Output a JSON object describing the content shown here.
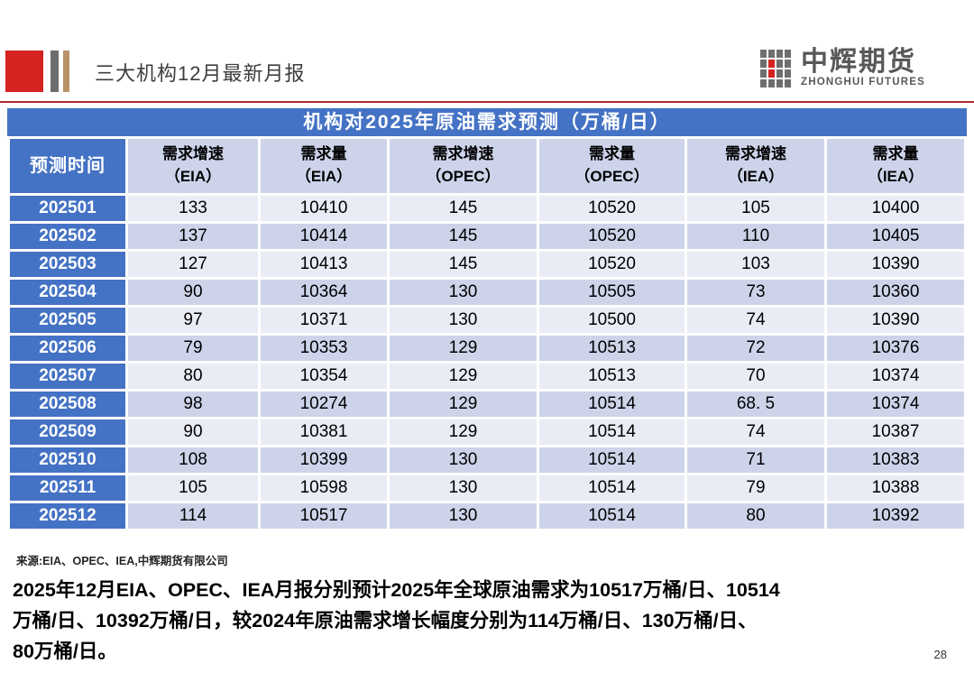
{
  "slide": {
    "title": "三大机构12月最新月报",
    "page_number": "28"
  },
  "logo": {
    "name_zh": "中辉期货",
    "name_en": "ZHONGHUI FUTURES"
  },
  "table": {
    "title": "机构对2025年原油需求预测（万桶/日）",
    "columns": [
      {
        "line1": "预测时间",
        "line2": ""
      },
      {
        "line1": "需求增速",
        "line2": "（EIA）"
      },
      {
        "line1": "需求量",
        "line2": "（EIA）"
      },
      {
        "line1": "需求增速",
        "line2": "（OPEC）"
      },
      {
        "line1": "需求量",
        "line2": "（OPEC）"
      },
      {
        "line1": "需求增速",
        "line2": "（IEA）"
      },
      {
        "line1": "需求量",
        "line2": "（IEA）"
      }
    ],
    "rows": [
      [
        "202501",
        "133",
        "10410",
        "145",
        "10520",
        "105",
        "10400"
      ],
      [
        "202502",
        "137",
        "10414",
        "145",
        "10520",
        "110",
        "10405"
      ],
      [
        "202503",
        "127",
        "10413",
        "145",
        "10520",
        "103",
        "10390"
      ],
      [
        "202504",
        "90",
        "10364",
        "130",
        "10505",
        "73",
        "10360"
      ],
      [
        "202505",
        "97",
        "10371",
        "130",
        "10500",
        "74",
        "10390"
      ],
      [
        "202506",
        "79",
        "10353",
        "129",
        "10513",
        "72",
        "10376"
      ],
      [
        "202507",
        "80",
        "10354",
        "129",
        "10513",
        "70",
        "10374"
      ],
      [
        "202508",
        "98",
        "10274",
        "129",
        "10514",
        "68. 5",
        "10374"
      ],
      [
        "202509",
        "90",
        "10381",
        "129",
        "10514",
        "74",
        "10387"
      ],
      [
        "202510",
        "108",
        "10399",
        "130",
        "10514",
        "71",
        "10383"
      ],
      [
        "202511",
        "105",
        "10598",
        "130",
        "10514",
        "79",
        "10388"
      ],
      [
        "202512",
        "114",
        "10517",
        "130",
        "10514",
        "80",
        "10392"
      ]
    ],
    "source": "来源:EIA、OPEC、IEA,中辉期货有限公司"
  },
  "summary": {
    "lines": [
      "2025年12月EIA、OPEC、IEA月报分别预计2025年全球原油需求为10517万桶/日、10514",
      "万桶/日、10392万桶/日，较2024年原油需求增长幅度分别为114万桶/日、130万桶/日、",
      "80万桶/日。"
    ]
  },
  "colors": {
    "accent_blue": "#4472c4",
    "stripe_light": "#e9ebf5",
    "stripe_dark": "#cdd4ea",
    "brand_red": "#d42320",
    "header_rule_red": "#b02c2c",
    "bar_gray": "#6d6d6d",
    "bar_tan": "#b99268"
  }
}
